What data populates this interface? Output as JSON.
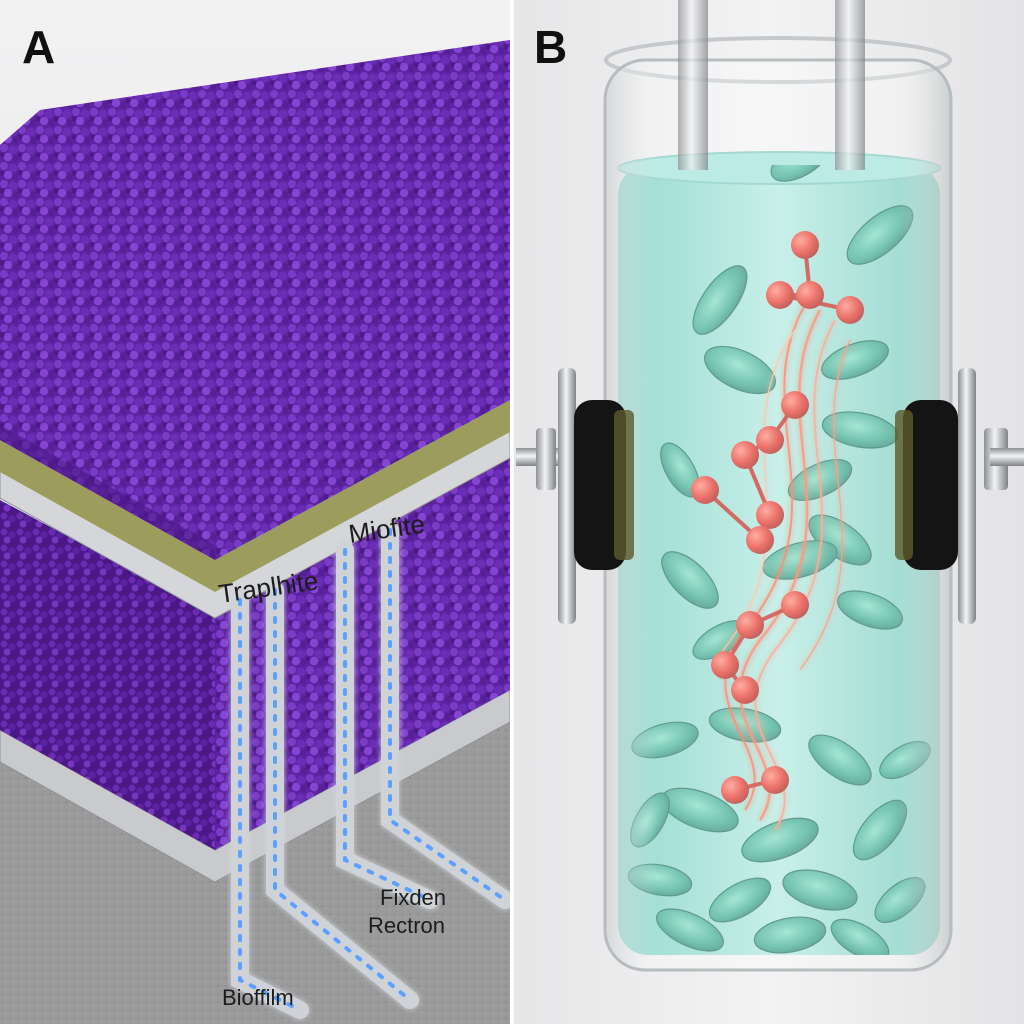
{
  "panels": [
    {
      "letter": "A",
      "labels": {
        "layer_left": "Traplhite",
        "layer_right": "Miofite",
        "electron": "Fixden Rectron",
        "electron_line1": "Fixden",
        "electron_line2": "Rectron",
        "biofilm": "Bioffilm"
      }
    },
    {
      "letter": "B"
    }
  ],
  "colors": {
    "biofilm_purple": "#6b2fb0",
    "conductive_layer": "#9a9a5a",
    "electrode_gray": "#c9cbcf",
    "wire_glow": "#5aa0ff",
    "medium_teal": "#7fd6c8",
    "bacteria": "#3fae95",
    "molecule_red": "#e0362b",
    "electron_wave": "#ff6a4a"
  },
  "icons": {
    "panel_b_bacteria": "rod-bacterium-icon",
    "panel_b_molecule": "molecule-icon",
    "panel_b_clamp": "electrode-clamp-icon"
  }
}
